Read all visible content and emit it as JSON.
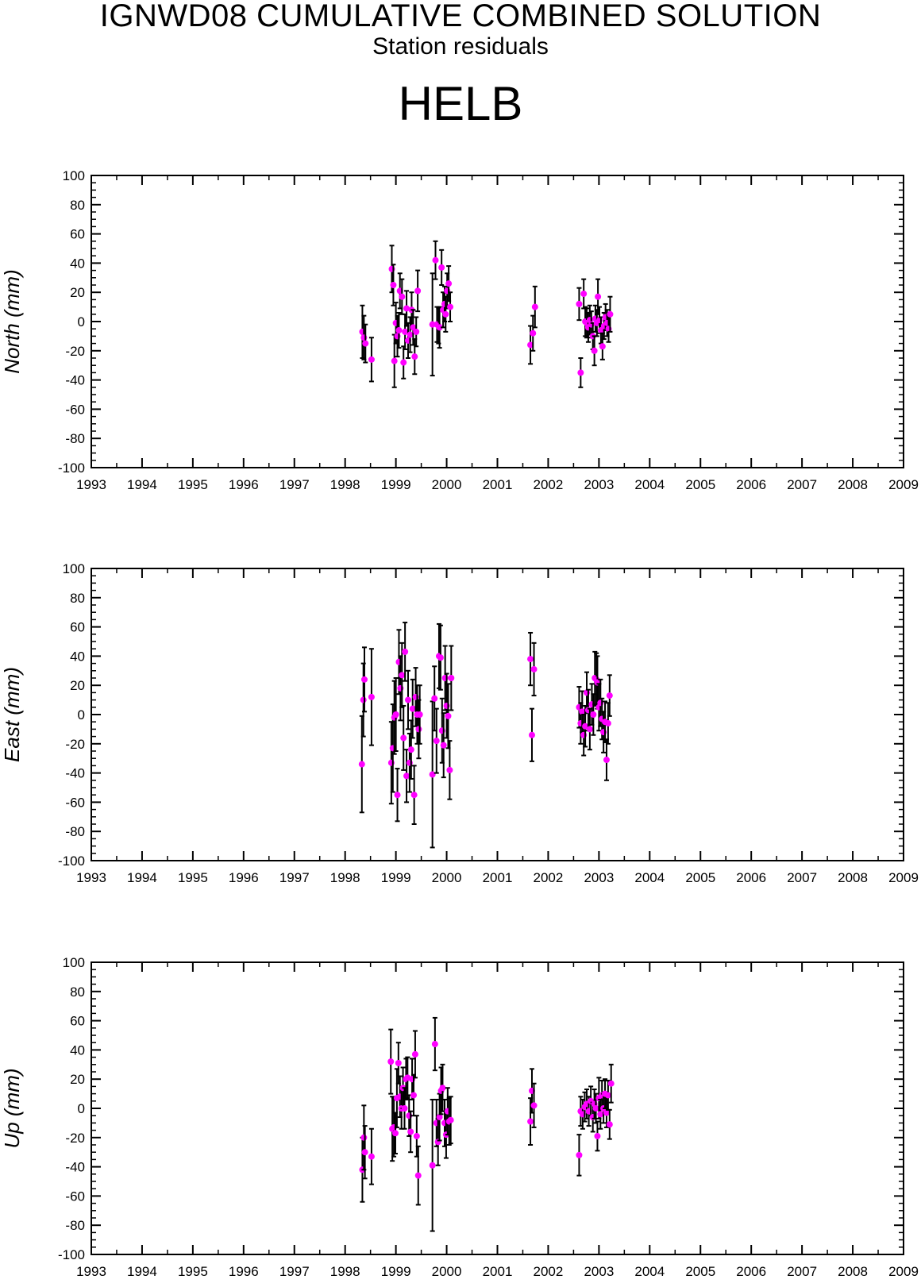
{
  "header": {
    "title": "IGNWD08 CUMULATIVE COMBINED SOLUTION",
    "subtitle": "Station residuals",
    "station": "HELB"
  },
  "colors": {
    "marker": "#ff00ff",
    "errorbar": "#000000",
    "axis": "#000000",
    "background": "#ffffff"
  },
  "chart_data": [
    {
      "type": "scatter",
      "name": "north",
      "ylabel": "North (mm)",
      "xlim": [
        1993,
        2009
      ],
      "ylim": [
        -100,
        100
      ],
      "xticks": [
        "1993",
        "1994",
        "1995",
        "1996",
        "1997",
        "1998",
        "1999",
        "2000",
        "2001",
        "2002",
        "2003",
        "2004",
        "2005",
        "2006",
        "2007",
        "2008",
        "2009"
      ],
      "yticks": [
        "100",
        "80",
        "60",
        "40",
        "20",
        "0",
        "-20",
        "-40",
        "-60",
        "-80",
        "-100"
      ],
      "points": [
        [
          1998.34,
          -7,
          18
        ],
        [
          1998.37,
          -11,
          15
        ],
        [
          1998.4,
          -15,
          13
        ],
        [
          1998.52,
          -26,
          15
        ],
        [
          1998.92,
          36,
          16
        ],
        [
          1998.95,
          25,
          14
        ],
        [
          1998.97,
          -27,
          18
        ],
        [
          1999.0,
          -1,
          14
        ],
        [
          1999.03,
          -10,
          14
        ],
        [
          1999.06,
          -6,
          12
        ],
        [
          1999.08,
          21,
          12
        ],
        [
          1999.12,
          17,
          12
        ],
        [
          1999.15,
          -28,
          11
        ],
        [
          1999.18,
          -7,
          12
        ],
        [
          1999.21,
          9,
          12
        ],
        [
          1999.24,
          -13,
          12
        ],
        [
          1999.28,
          -9,
          12
        ],
        [
          1999.31,
          8,
          12
        ],
        [
          1999.34,
          -4,
          12
        ],
        [
          1999.37,
          -24,
          12
        ],
        [
          1999.4,
          -7,
          10
        ],
        [
          1999.43,
          21,
          14
        ],
        [
          1999.72,
          -2,
          35
        ],
        [
          1999.78,
          42,
          13
        ],
        [
          1999.81,
          -2,
          12
        ],
        [
          1999.84,
          -3,
          12
        ],
        [
          1999.86,
          -4,
          14
        ],
        [
          1999.9,
          37,
          12
        ],
        [
          1999.93,
          8,
          12
        ],
        [
          1999.96,
          12,
          12
        ],
        [
          1999.98,
          5,
          12
        ],
        [
          2000.01,
          21,
          12
        ],
        [
          2000.04,
          26,
          12
        ],
        [
          2000.07,
          10,
          10
        ],
        [
          2001.65,
          -16,
          13
        ],
        [
          2001.7,
          -8,
          12
        ],
        [
          2001.74,
          10,
          14
        ],
        [
          2002.61,
          12,
          11
        ],
        [
          2002.64,
          -35,
          10
        ],
        [
          2002.7,
          19,
          10
        ],
        [
          2002.73,
          0,
          10
        ],
        [
          2002.76,
          -1,
          10
        ],
        [
          2002.79,
          -4,
          10
        ],
        [
          2002.82,
          1,
          10
        ],
        [
          2002.85,
          -2,
          9
        ],
        [
          2002.88,
          -10,
          9
        ],
        [
          2002.91,
          -20,
          10
        ],
        [
          2002.93,
          2,
          9
        ],
        [
          2002.96,
          -1,
          9
        ],
        [
          2002.98,
          17,
          12
        ],
        [
          2003.01,
          1,
          9
        ],
        [
          2003.04,
          -6,
          9
        ],
        [
          2003.07,
          -17,
          9
        ],
        [
          2003.1,
          -3,
          9
        ],
        [
          2003.13,
          3,
          9
        ],
        [
          2003.16,
          -1,
          9
        ],
        [
          2003.19,
          -5,
          9
        ],
        [
          2003.22,
          5,
          12
        ]
      ]
    },
    {
      "type": "scatter",
      "name": "east",
      "ylabel": "East (mm)",
      "xlim": [
        1993,
        2009
      ],
      "ylim": [
        -100,
        100
      ],
      "xticks": [
        "1993",
        "1994",
        "1995",
        "1996",
        "1997",
        "1998",
        "1999",
        "2000",
        "2001",
        "2002",
        "2003",
        "2004",
        "2005",
        "2006",
        "2007",
        "2008",
        "2009"
      ],
      "yticks": [
        "100",
        "80",
        "60",
        "40",
        "20",
        "0",
        "-20",
        "-40",
        "-60",
        "-80",
        "-100"
      ],
      "points": [
        [
          1998.33,
          -34,
          33
        ],
        [
          1998.36,
          10,
          25
        ],
        [
          1998.38,
          24,
          22
        ],
        [
          1998.52,
          12,
          33
        ],
        [
          1998.91,
          -33,
          28
        ],
        [
          1998.94,
          -23,
          30
        ],
        [
          1998.97,
          -2,
          25
        ],
        [
          1999.0,
          0,
          25
        ],
        [
          1999.03,
          -55,
          18
        ],
        [
          1999.06,
          36,
          22
        ],
        [
          1999.09,
          18,
          22
        ],
        [
          1999.12,
          27,
          22
        ],
        [
          1999.15,
          -16,
          22
        ],
        [
          1999.18,
          43,
          20
        ],
        [
          1999.21,
          -42,
          18
        ],
        [
          1999.24,
          10,
          20
        ],
        [
          1999.27,
          -33,
          20
        ],
        [
          1999.3,
          -24,
          20
        ],
        [
          1999.33,
          4,
          20
        ],
        [
          1999.36,
          -55,
          20
        ],
        [
          1999.39,
          12,
          20
        ],
        [
          1999.42,
          0,
          20
        ],
        [
          1999.45,
          -10,
          20
        ],
        [
          1999.47,
          0,
          20
        ],
        [
          1999.72,
          -41,
          50
        ],
        [
          1999.76,
          11,
          22
        ],
        [
          1999.8,
          -18,
          22
        ],
        [
          1999.85,
          40,
          22
        ],
        [
          1999.88,
          39,
          22
        ],
        [
          1999.91,
          -11,
          22
        ],
        [
          1999.94,
          -21,
          22
        ],
        [
          1999.97,
          25,
          22
        ],
        [
          2000.0,
          6,
          22
        ],
        [
          2000.03,
          -1,
          22
        ],
        [
          2000.06,
          -38,
          20
        ],
        [
          2000.09,
          25,
          22
        ],
        [
          2001.65,
          38,
          18
        ],
        [
          2001.68,
          -14,
          18
        ],
        [
          2001.72,
          31,
          18
        ],
        [
          2002.61,
          5,
          14
        ],
        [
          2002.64,
          -6,
          14
        ],
        [
          2002.67,
          2,
          14
        ],
        [
          2002.7,
          -14,
          14
        ],
        [
          2002.73,
          -8,
          14
        ],
        [
          2002.76,
          15,
          14
        ],
        [
          2002.79,
          3,
          14
        ],
        [
          2002.82,
          -10,
          14
        ],
        [
          2002.86,
          7,
          14
        ],
        [
          2002.89,
          0,
          14
        ],
        [
          2002.92,
          25,
          18
        ],
        [
          2002.95,
          24,
          18
        ],
        [
          2002.97,
          22,
          18
        ],
        [
          2003.0,
          5,
          16
        ],
        [
          2003.03,
          8,
          16
        ],
        [
          2003.06,
          -3,
          14
        ],
        [
          2003.09,
          -12,
          14
        ],
        [
          2003.12,
          -5,
          14
        ],
        [
          2003.15,
          -31,
          14
        ],
        [
          2003.18,
          -6,
          14
        ],
        [
          2003.21,
          13,
          14
        ]
      ]
    },
    {
      "type": "scatter",
      "name": "up",
      "ylabel": "Up (mm)",
      "xlim": [
        1993,
        2009
      ],
      "ylim": [
        -100,
        100
      ],
      "xticks": [
        "1993",
        "1994",
        "1995",
        "1996",
        "1997",
        "1998",
        "1999",
        "2000",
        "2001",
        "2002",
        "2003",
        "2004",
        "2005",
        "2006",
        "2007",
        "2008",
        "2009"
      ],
      "yticks": [
        "100",
        "80",
        "60",
        "40",
        "20",
        "0",
        "-20",
        "-40",
        "-60",
        "-80",
        "-100"
      ],
      "points": [
        [
          1998.34,
          -42,
          22
        ],
        [
          1998.37,
          -20,
          22
        ],
        [
          1998.39,
          -30,
          18
        ],
        [
          1998.52,
          -33,
          19
        ],
        [
          1998.9,
          32,
          22
        ],
        [
          1998.93,
          -14,
          22
        ],
        [
          1998.96,
          -13,
          20
        ],
        [
          1998.99,
          -17,
          14
        ],
        [
          1999.02,
          7,
          20
        ],
        [
          1999.05,
          31,
          14
        ],
        [
          1999.08,
          8,
          14
        ],
        [
          1999.11,
          0,
          14
        ],
        [
          1999.14,
          14,
          14
        ],
        [
          1999.17,
          0,
          14
        ],
        [
          1999.2,
          20,
          14
        ],
        [
          1999.23,
          21,
          14
        ],
        [
          1999.26,
          -5,
          14
        ],
        [
          1999.29,
          -16,
          14
        ],
        [
          1999.32,
          20,
          14
        ],
        [
          1999.35,
          9,
          14
        ],
        [
          1999.38,
          37,
          16
        ],
        [
          1999.41,
          -19,
          14
        ],
        [
          1999.44,
          -46,
          20
        ],
        [
          1999.72,
          -39,
          45
        ],
        [
          1999.77,
          44,
          18
        ],
        [
          1999.8,
          -10,
          16
        ],
        [
          1999.83,
          -23,
          16
        ],
        [
          1999.86,
          -6,
          16
        ],
        [
          1999.89,
          12,
          16
        ],
        [
          1999.92,
          14,
          16
        ],
        [
          1999.96,
          -10,
          16
        ],
        [
          1999.99,
          -18,
          16
        ],
        [
          2000.02,
          -2,
          16
        ],
        [
          2000.05,
          -9,
          16
        ],
        [
          2000.08,
          -8,
          16
        ],
        [
          2001.65,
          -9,
          16
        ],
        [
          2001.68,
          12,
          15
        ],
        [
          2001.72,
          2,
          15
        ],
        [
          2002.61,
          -32,
          14
        ],
        [
          2002.64,
          -2,
          10
        ],
        [
          2002.68,
          -4,
          10
        ],
        [
          2002.72,
          1,
          10
        ],
        [
          2002.76,
          3,
          10
        ],
        [
          2002.8,
          -2,
          10
        ],
        [
          2002.84,
          5,
          10
        ],
        [
          2002.88,
          -6,
          10
        ],
        [
          2002.91,
          3,
          10
        ],
        [
          2002.94,
          0,
          10
        ],
        [
          2002.97,
          -19,
          10
        ],
        [
          2003.0,
          7,
          14
        ],
        [
          2003.03,
          -4,
          10
        ],
        [
          2003.06,
          9,
          10
        ],
        [
          2003.09,
          0,
          10
        ],
        [
          2003.12,
          10,
          10
        ],
        [
          2003.15,
          -3,
          10
        ],
        [
          2003.18,
          9,
          10
        ],
        [
          2003.21,
          -11,
          10
        ],
        [
          2003.24,
          17,
          13
        ]
      ]
    }
  ]
}
